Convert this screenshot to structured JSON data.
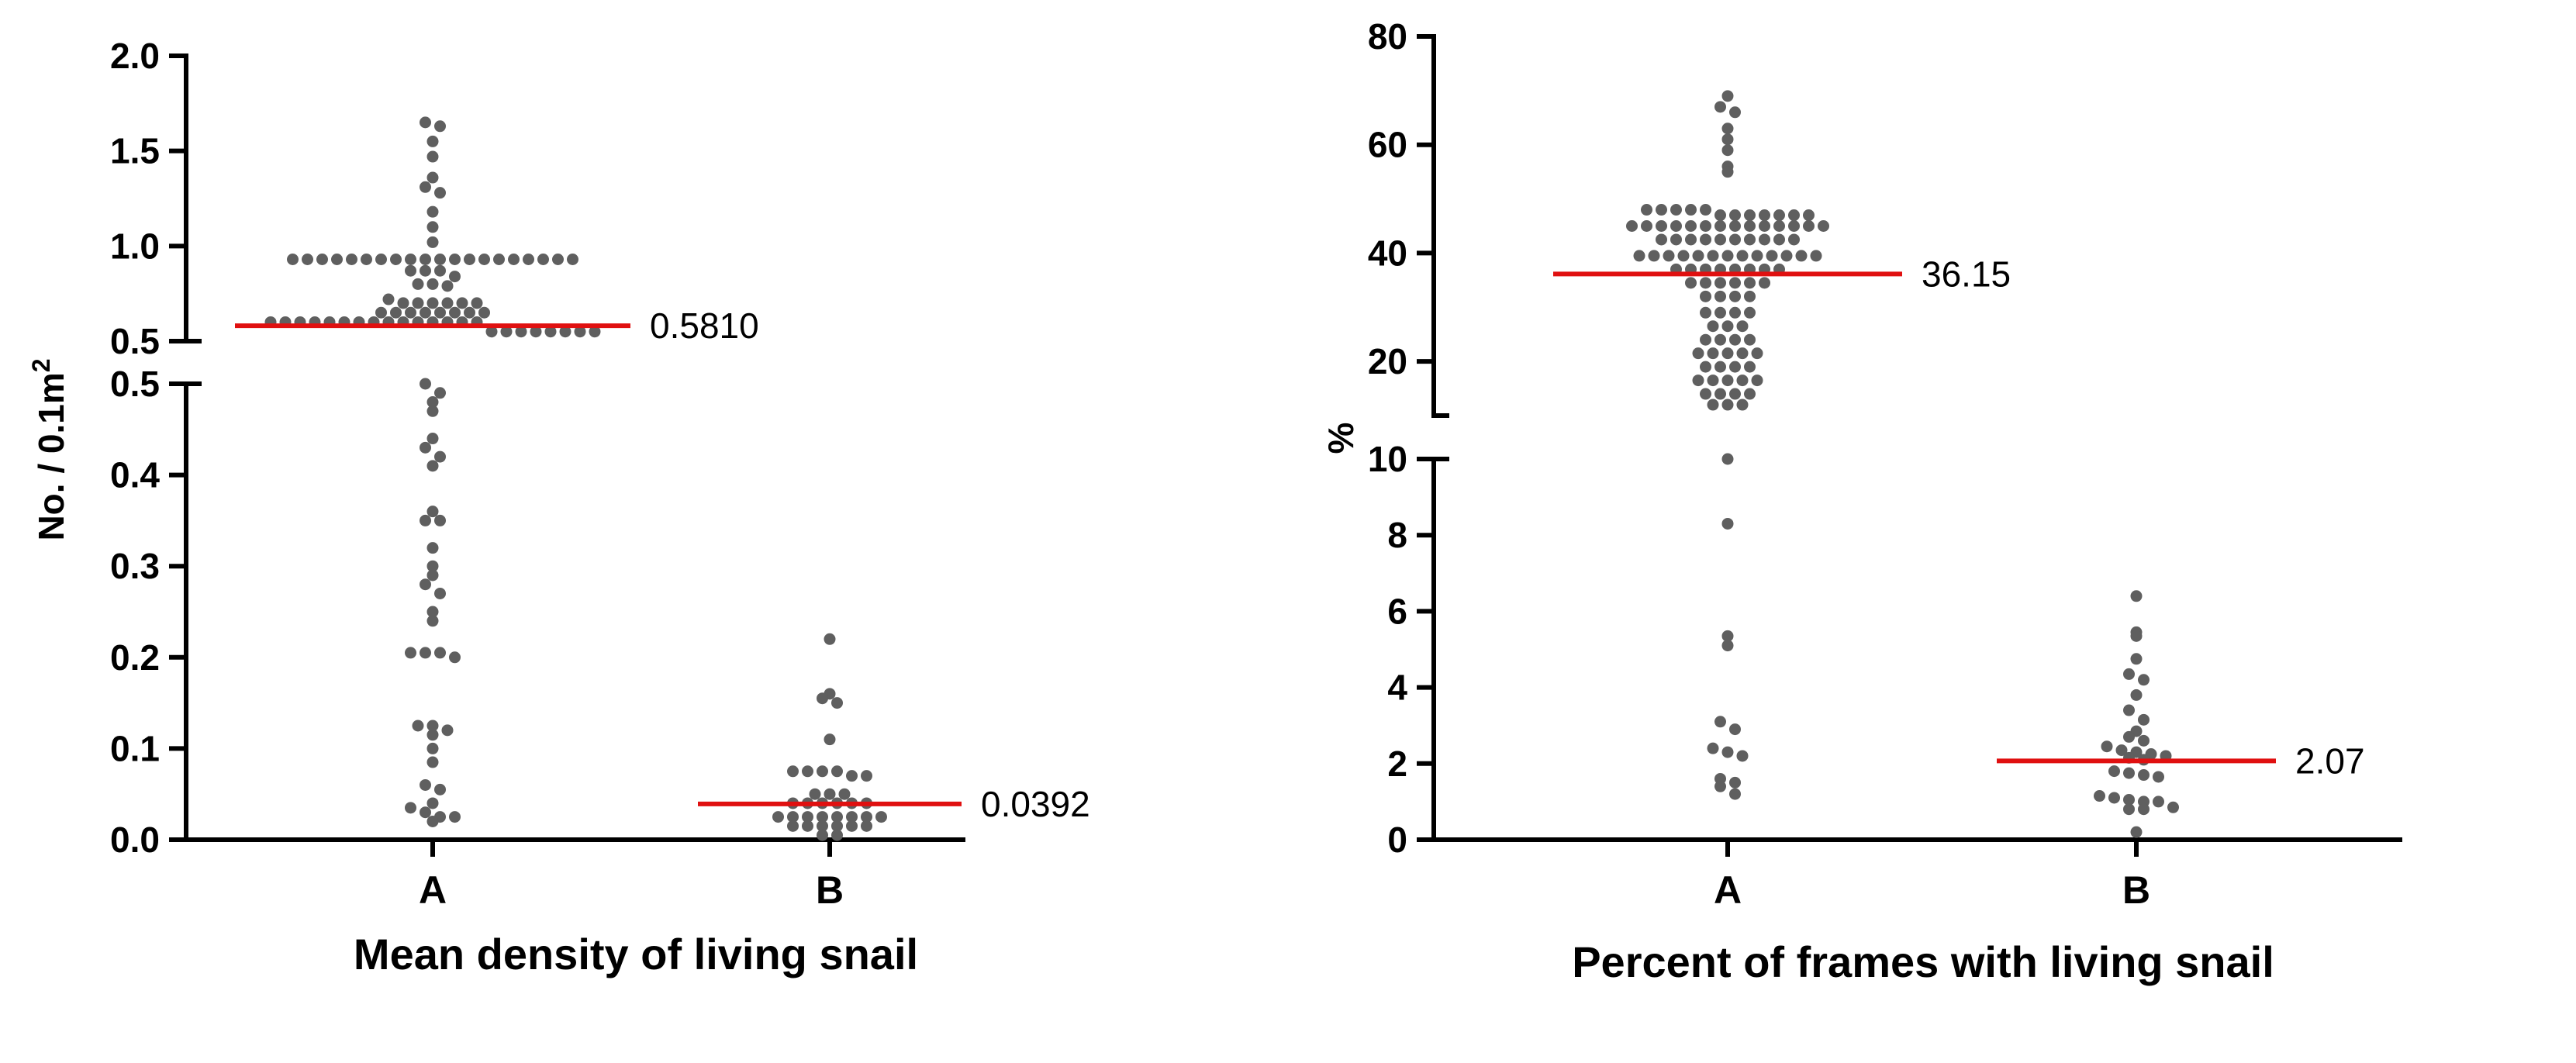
{
  "chart_data": [
    {
      "type": "scatter",
      "title": "Mean density of living snail",
      "ylabel": "No. / 0.1m",
      "ylabel_superscript": "2",
      "categories": [
        "A",
        "B"
      ],
      "y_segments": [
        {
          "range": [
            0,
            0.5
          ],
          "ticks": [
            "0.0",
            "0.1",
            "0.2",
            "0.3",
            "0.4",
            "0.5"
          ],
          "tick_values": [
            0,
            0.1,
            0.2,
            0.3,
            0.4,
            0.5
          ]
        },
        {
          "range": [
            0.5,
            2.0
          ],
          "ticks": [
            "0.5",
            "1.0",
            "1.5",
            "2.0"
          ],
          "tick_values": [
            0.5,
            1.0,
            1.5,
            2.0
          ]
        }
      ],
      "series": [
        {
          "name": "A",
          "median": 0.581,
          "median_label": "0.5810",
          "values": [
            1.65,
            1.63,
            1.55,
            1.47,
            1.36,
            1.31,
            1.28,
            1.18,
            1.1,
            1.02,
            0.93,
            0.93,
            0.93,
            0.93,
            0.93,
            0.93,
            0.93,
            0.93,
            0.93,
            0.93,
            0.93,
            0.93,
            0.93,
            0.93,
            0.93,
            0.93,
            0.93,
            0.93,
            0.93,
            0.93,
            0.87,
            0.87,
            0.87,
            0.84,
            0.8,
            0.8,
            0.79,
            0.72,
            0.7,
            0.7,
            0.7,
            0.7,
            0.7,
            0.7,
            0.65,
            0.65,
            0.65,
            0.65,
            0.65,
            0.65,
            0.65,
            0.65,
            0.6,
            0.6,
            0.6,
            0.6,
            0.6,
            0.6,
            0.6,
            0.6,
            0.6,
            0.6,
            0.6,
            0.6,
            0.6,
            0.6,
            0.6,
            0.55,
            0.55,
            0.55,
            0.55,
            0.55,
            0.55,
            0.55,
            0.55,
            0.5,
            0.49,
            0.48,
            0.47,
            0.44,
            0.43,
            0.42,
            0.41,
            0.36,
            0.35,
            0.35,
            0.32,
            0.3,
            0.29,
            0.28,
            0.27,
            0.25,
            0.24,
            0.205,
            0.205,
            0.205,
            0.2,
            0.125,
            0.125,
            0.12,
            0.115,
            0.1,
            0.085,
            0.06,
            0.055,
            0.04,
            0.035,
            0.03,
            0.025,
            0.025,
            0.02
          ]
        },
        {
          "name": "B",
          "median": 0.0392,
          "median_label": "0.0392",
          "values": [
            0.22,
            0.16,
            0.155,
            0.15,
            0.11,
            0.075,
            0.075,
            0.075,
            0.075,
            0.07,
            0.07,
            0.05,
            0.05,
            0.05,
            0.04,
            0.04,
            0.04,
            0.04,
            0.04,
            0.04,
            0.025,
            0.025,
            0.025,
            0.025,
            0.025,
            0.025,
            0.025,
            0.025,
            0.015,
            0.015,
            0.015,
            0.015,
            0.015,
            0.015,
            0.005,
            0.005
          ]
        }
      ]
    },
    {
      "type": "scatter",
      "title": "Percent of frames with living snail",
      "ylabel": "%",
      "categories": [
        "A",
        "B"
      ],
      "y_segments": [
        {
          "range": [
            0,
            10
          ],
          "ticks": [
            "0",
            "2",
            "4",
            "6",
            "8",
            "10"
          ],
          "tick_values": [
            0,
            2,
            4,
            6,
            8,
            10
          ]
        },
        {
          "range": [
            10,
            80
          ],
          "ticks": [
            "20",
            "40",
            "60",
            "80"
          ],
          "tick_values": [
            20,
            40,
            60,
            80
          ]
        }
      ],
      "series": [
        {
          "name": "A",
          "median": 36.15,
          "median_label": "36.15",
          "values": [
            69,
            67,
            66,
            63,
            61,
            59,
            56,
            55,
            48,
            48,
            48,
            48,
            48,
            47,
            47,
            47,
            47,
            47,
            47,
            47,
            45,
            45,
            45,
            45,
            45,
            45,
            45,
            45,
            45,
            45,
            45,
            45,
            45,
            45,
            42.5,
            42.5,
            42.5,
            42.5,
            42.5,
            42.5,
            42.5,
            42.5,
            42.5,
            42.5,
            39.5,
            39.5,
            39.5,
            39.5,
            39.5,
            39.5,
            39.5,
            39.5,
            39.5,
            39.5,
            39.5,
            39.5,
            39.5,
            37,
            37,
            37,
            37,
            37,
            37,
            37,
            37,
            34.5,
            34.5,
            34.5,
            34.5,
            34.5,
            34.5,
            32,
            32,
            32,
            32,
            29,
            29,
            29,
            29,
            26.5,
            26.5,
            26.5,
            24,
            24,
            24,
            24,
            21.5,
            21.5,
            21.5,
            21.5,
            21.5,
            19,
            19,
            19,
            19,
            16.5,
            16.5,
            16.5,
            16.5,
            16.5,
            14,
            14,
            14,
            14,
            12,
            12,
            12,
            10,
            8.3,
            5.35,
            5.1,
            3.1,
            2.9,
            2.4,
            2.3,
            2.2,
            1.6,
            1.5,
            1.4,
            1.2
          ]
        },
        {
          "name": "B",
          "median": 2.07,
          "median_label": "2.07",
          "values": [
            6.4,
            5.45,
            5.35,
            4.75,
            4.35,
            4.2,
            3.8,
            3.4,
            3.15,
            2.85,
            2.7,
            2.6,
            2.45,
            2.35,
            2.3,
            2.25,
            2.2,
            2.15,
            2.1,
            1.8,
            1.75,
            1.7,
            1.65,
            1.15,
            1.1,
            1.05,
            1.0,
            1.0,
            0.85,
            0.8,
            0.8,
            0.2
          ]
        }
      ]
    }
  ]
}
